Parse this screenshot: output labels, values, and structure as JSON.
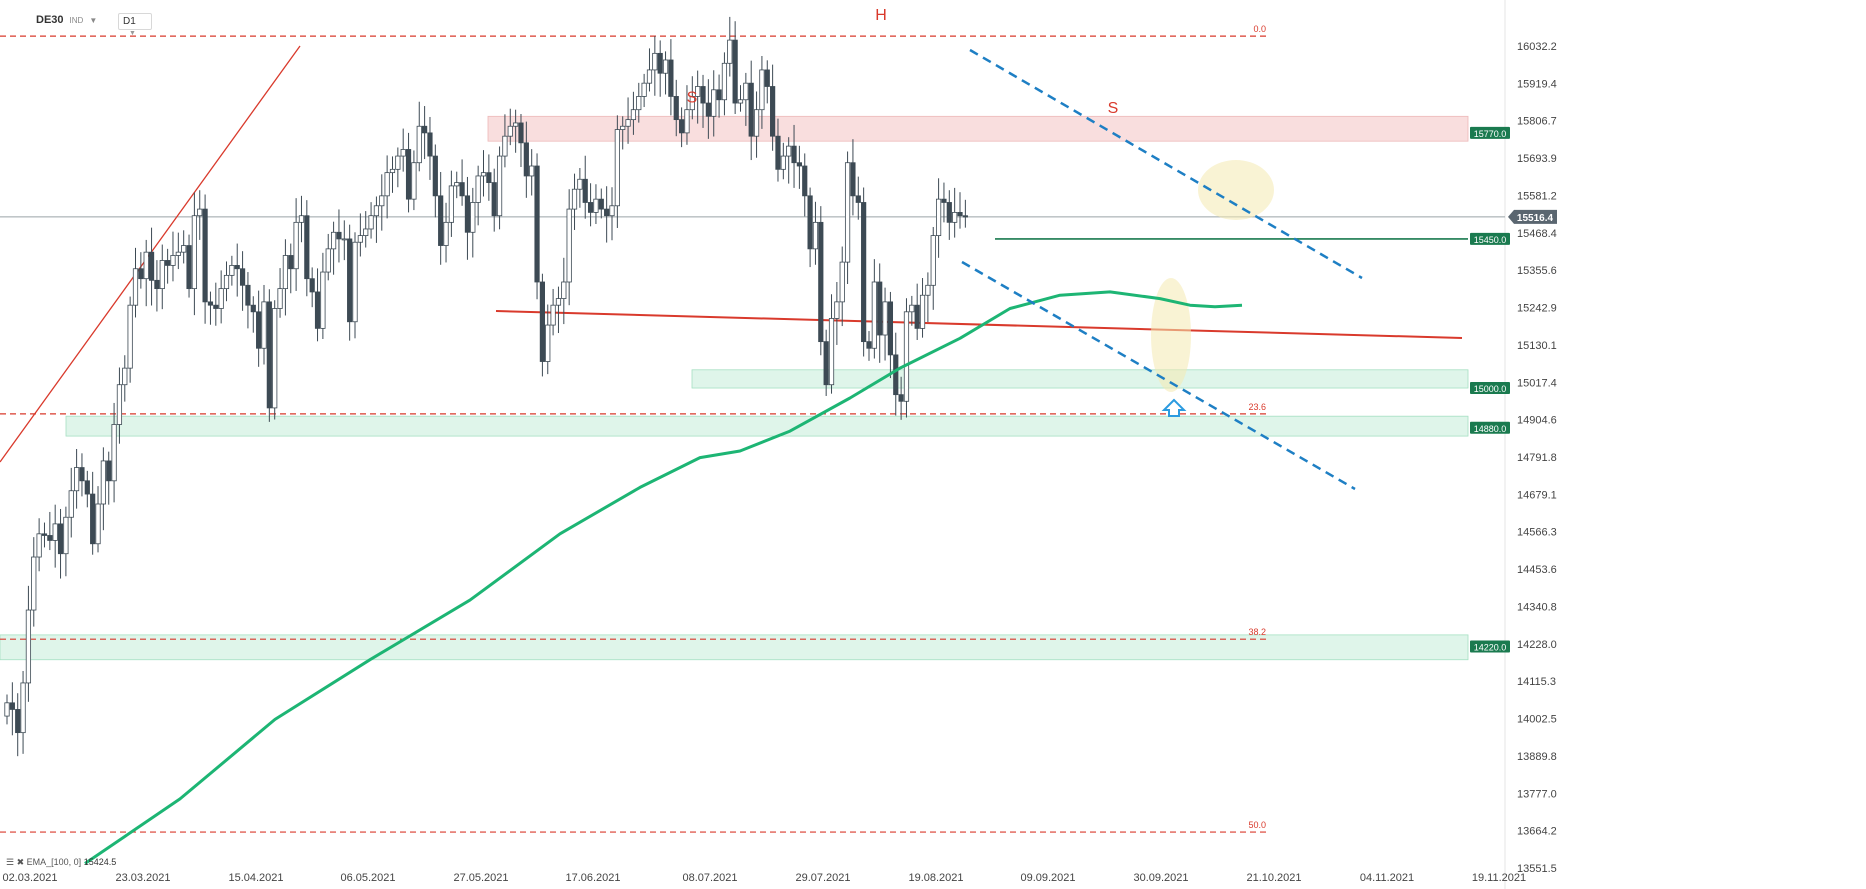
{
  "header": {
    "symbol": "DE30",
    "instrument_type": "IND",
    "timeframe": "D1"
  },
  "ema_legend": {
    "label": "EMA_[100, 0]",
    "value": "15424.5"
  },
  "chart_data": {
    "type": "candlestick",
    "y_axis_ticks": [
      16032.2,
      15919.4,
      15806.7,
      15693.9,
      15581.2,
      15468.4,
      15355.6,
      15242.9,
      15130.1,
      15017.4,
      14904.6,
      14791.8,
      14679.1,
      14566.3,
      14453.6,
      14340.8,
      14228.0,
      14115.3,
      14002.5,
      13889.8,
      13777.0,
      13664.2,
      13551.5
    ],
    "y_tick_labels": [
      "16032.2",
      "15919.4",
      "15806.7",
      "15693.9",
      "15581.2",
      "15468.4",
      "15355.6",
      "15242.9",
      "15130.1",
      "15017.4",
      "14904.6",
      "14791.8",
      "14679.1",
      "14566.3",
      "14453.6",
      "14340.8",
      "14228.0",
      "14115.3",
      "14002.5",
      "13889.8",
      "13777.0",
      "13664.2",
      "13551.5"
    ],
    "x_tick_labels": [
      "02.03.2021",
      "23.03.2021",
      "15.04.2021",
      "06.05.2021",
      "27.05.2021",
      "17.06.2021",
      "08.07.2021",
      "29.07.2021",
      "19.08.2021",
      "09.09.2021",
      "30.09.2021",
      "21.10.2021",
      "04.11.2021",
      "19.11.2021"
    ],
    "last_price": "15516.4",
    "fibonacci": [
      {
        "level": "0.0",
        "price": 16062
      },
      {
        "level": "23.6",
        "price": 14922
      },
      {
        "level": "38.2",
        "price": 14242
      },
      {
        "level": "50.0",
        "price": 13660
      }
    ],
    "levels": [
      {
        "label": "15770.0",
        "price": 15770,
        "zone": [
          15745,
          15820
        ]
      },
      {
        "label": "15450.0",
        "price": 15450
      },
      {
        "label": "15000.0",
        "price": 15000,
        "zone": [
          15000,
          15055
        ]
      },
      {
        "label": "14880.0",
        "price": 14880,
        "zone": [
          14855,
          14915
        ]
      },
      {
        "label": "14220.0",
        "price": 14220,
        "zone": [
          14180,
          14255
        ]
      }
    ],
    "pattern_labels": [
      {
        "text": "S",
        "price": 15862
      },
      {
        "text": "H",
        "price": 16110
      },
      {
        "text": "S",
        "price": 15830
      }
    ],
    "colors": {
      "bear_candle": "#3d4a54",
      "bull_candle": "#ffffff",
      "ema": "#1db574",
      "trendline_red": "#d93a2c",
      "channel": "#1e7fc4",
      "fib": "#d93a2c",
      "level_zone_red": "#f8d7d7",
      "level_zone_green": "#d8f3e6",
      "level_label_bg": "#1a7a4f",
      "ellipse": "#f4eab0",
      "arrow": "#2b9be0"
    }
  }
}
